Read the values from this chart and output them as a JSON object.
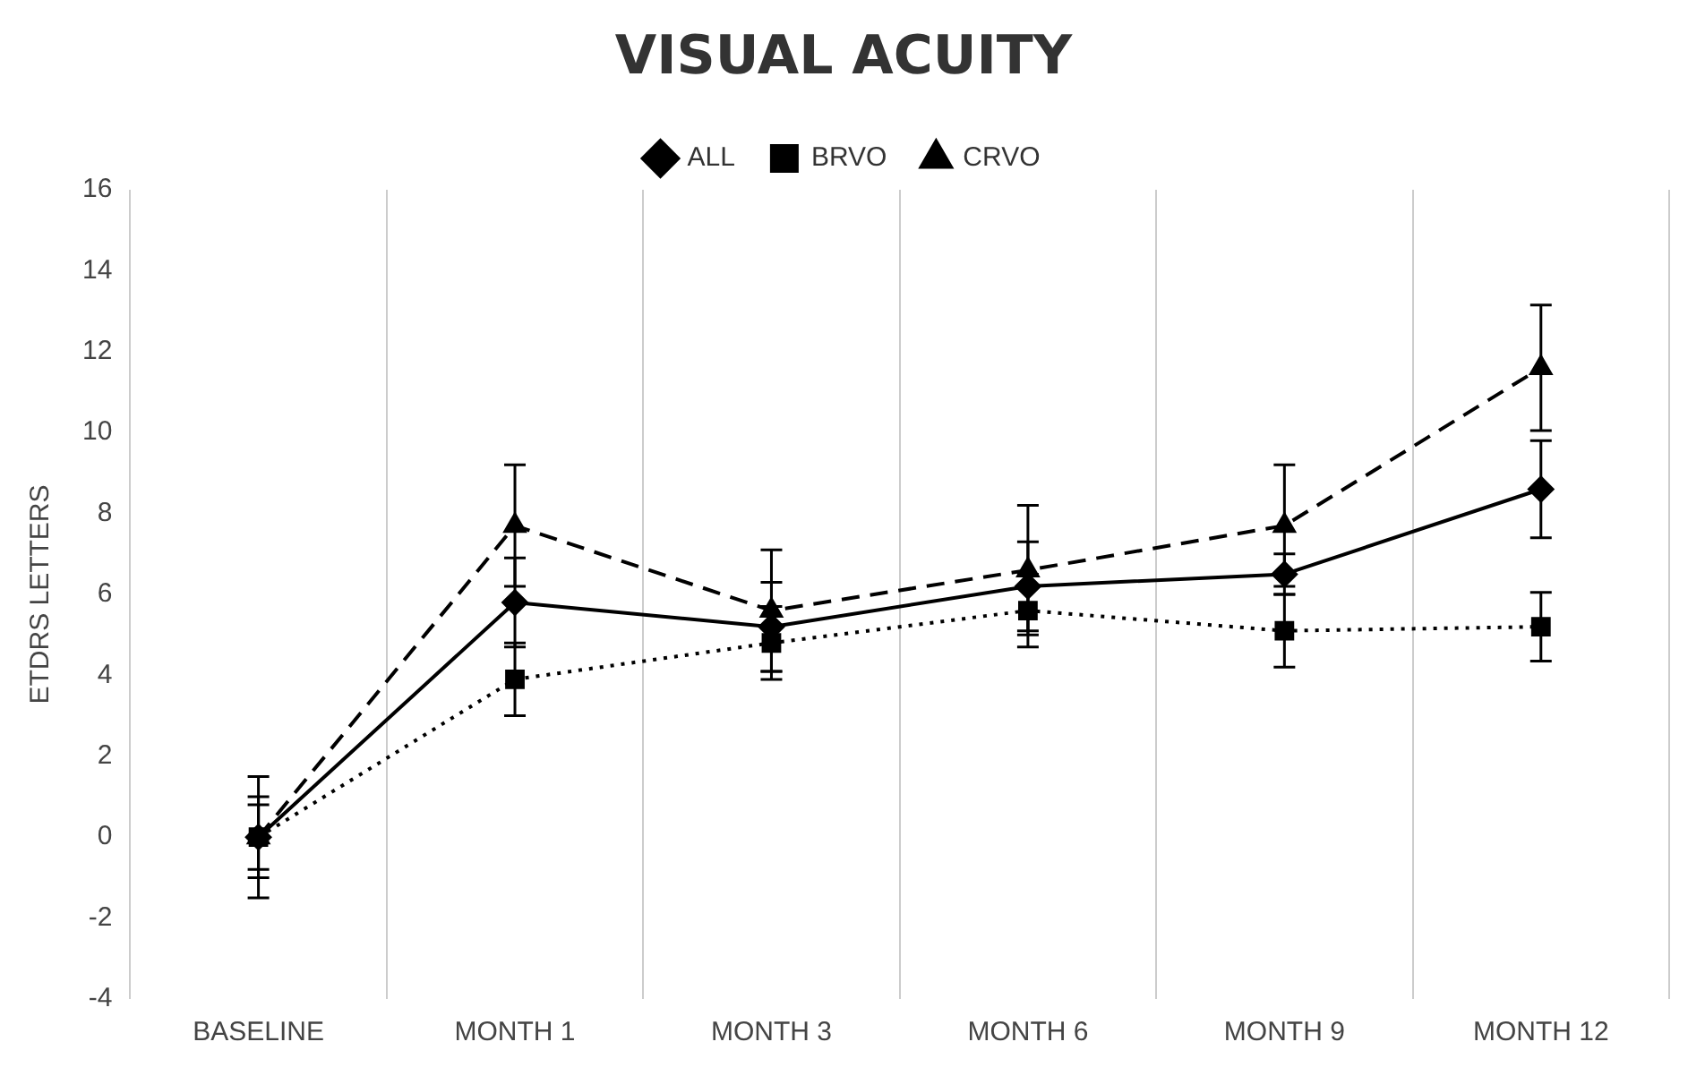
{
  "chart_data": {
    "type": "line",
    "title": "VISUAL ACUITY",
    "ylabel": "ETDRS LETTERS",
    "categories": [
      "BASELINE",
      "MONTH 1",
      "MONTH 3",
      "MONTH 6",
      "MONTH 9",
      "MONTH 12"
    ],
    "series": [
      {
        "name": "ALL",
        "color": "#000000",
        "marker": "diamond",
        "line_style": "solid",
        "values": [
          0,
          5.8,
          5.2,
          6.2,
          6.5,
          8.6
        ],
        "errors": [
          1.0,
          1.1,
          1.1,
          1.1,
          0.5,
          1.2
        ]
      },
      {
        "name": "BRVO",
        "color": "#000000",
        "marker": "square",
        "line_style": "dotted",
        "values": [
          0,
          3.9,
          4.8,
          5.6,
          5.1,
          5.2
        ],
        "errors": [
          0.8,
          0.9,
          0.9,
          0.9,
          0.9,
          0.85
        ]
      },
      {
        "name": "CRVO",
        "color": "#000000",
        "marker": "triangle",
        "line_style": "dashed",
        "values": [
          0,
          7.7,
          5.6,
          6.6,
          7.7,
          11.6
        ],
        "errors": [
          1.5,
          1.5,
          1.5,
          1.6,
          1.5,
          1.55
        ]
      }
    ],
    "ylim": [
      -4,
      16
    ],
    "yticks": [
      -4,
      -2,
      0,
      2,
      4,
      6,
      8,
      10,
      12,
      14,
      16
    ],
    "grid": "x",
    "legend": "top"
  }
}
